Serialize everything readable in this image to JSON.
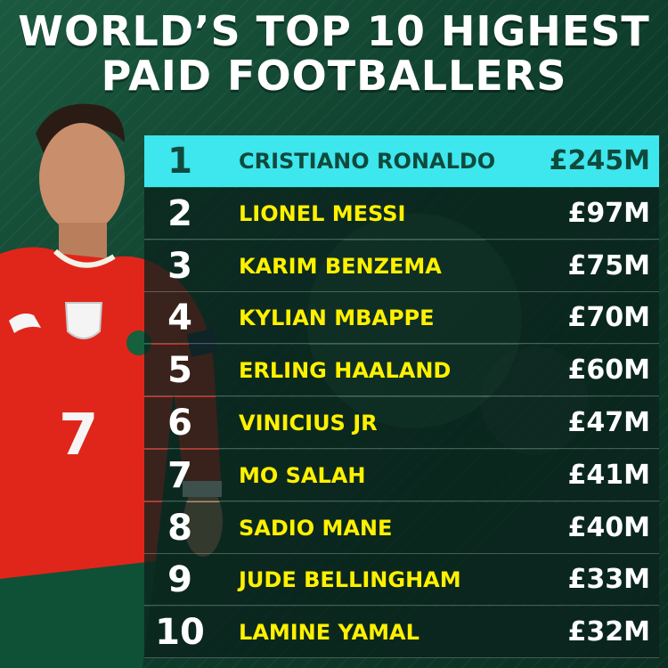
{
  "title": {
    "line1": "WORLD’S TOP 10 HIGHEST",
    "line2": "PAID FOOTBALLERS"
  },
  "colors": {
    "background": "#0f3a2a",
    "highlight_row": "#3ee6ee",
    "name_text": "#fff100",
    "pay_text": "#ffffff",
    "highlight_text": "#0f4a3c"
  },
  "player": {
    "shirt_number": "7"
  },
  "rankings": [
    {
      "rank": "1",
      "name": "CRISTIANO RONALDO",
      "pay": "£245M"
    },
    {
      "rank": "2",
      "name": "LIONEL MESSI",
      "pay": "£97M"
    },
    {
      "rank": "3",
      "name": "KARIM BENZEMA",
      "pay": "£75M"
    },
    {
      "rank": "4",
      "name": "KYLIAN MBAPPE",
      "pay": "£70M"
    },
    {
      "rank": "5",
      "name": "ERLING HAALAND",
      "pay": "£60M"
    },
    {
      "rank": "6",
      "name": "VINICIUS JR",
      "pay": "£47M"
    },
    {
      "rank": "7",
      "name": "MO SALAH",
      "pay": "£41M"
    },
    {
      "rank": "8",
      "name": "SADIO MANE",
      "pay": "£40M"
    },
    {
      "rank": "9",
      "name": "JUDE BELLINGHAM",
      "pay": "£33M"
    },
    {
      "rank": "10",
      "name": "LAMINE YAMAL",
      "pay": "£32M"
    }
  ]
}
